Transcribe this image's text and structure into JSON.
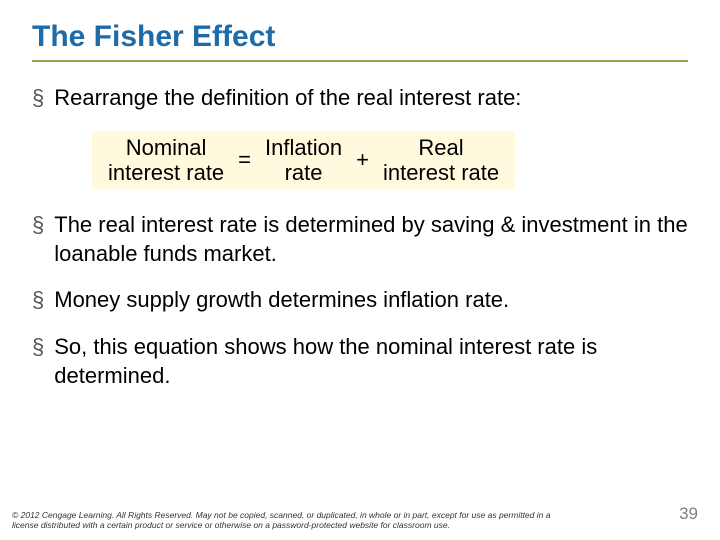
{
  "title": "The Fisher Effect",
  "bullets": [
    "Rearrange the definition of the real interest rate:",
    "The real interest rate is determined by saving & investment in the loanable funds market.",
    "Money supply growth determines inflation rate.",
    "So, this equation shows how the nominal interest rate is determined."
  ],
  "equation": {
    "term1_line1": "Nominal",
    "term1_line2": "interest rate",
    "op1": "=",
    "term2_line1": "Inflation",
    "term2_line2": "rate",
    "op2": "+",
    "term3_line1": "Real",
    "term3_line2": "interest rate"
  },
  "copyright": "© 2012 Cengage Learning. All Rights Reserved. May not be copied, scanned, or duplicated, in whole or in part, except for use as permitted in a license distributed with a certain product or service or otherwise on a password-protected website for classroom use.",
  "page_number": "39",
  "colors": {
    "title_color": "#1f6ba8",
    "underline_color": "#8aa84f",
    "equation_bg": "#fff9de",
    "page_num_color": "#808080"
  }
}
